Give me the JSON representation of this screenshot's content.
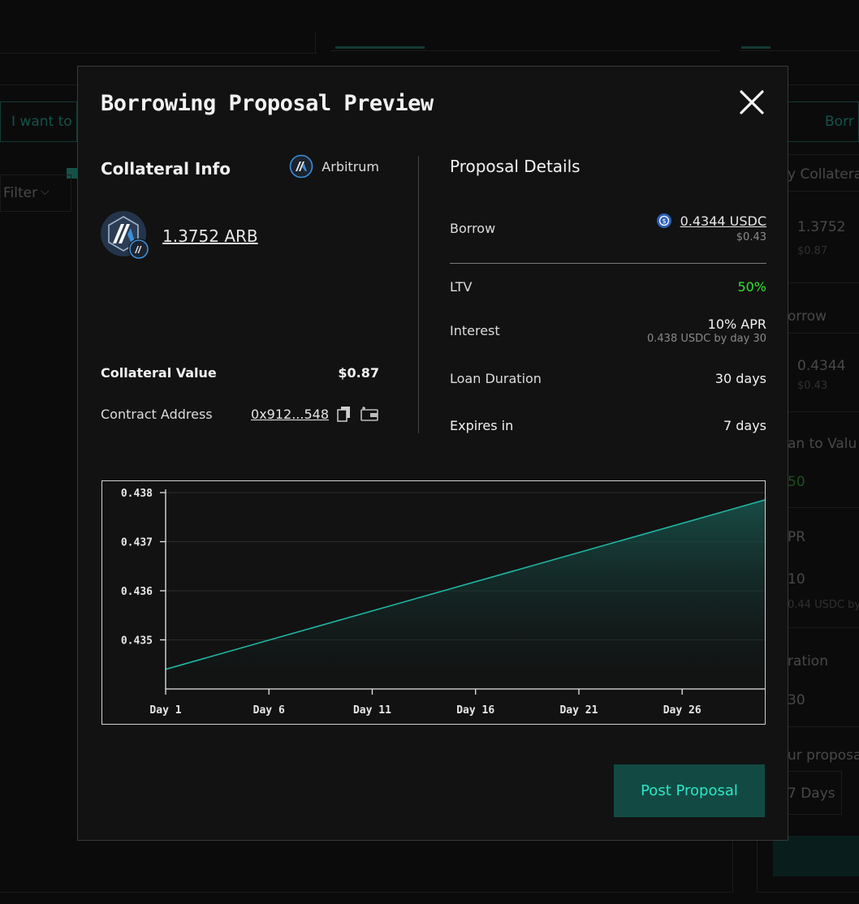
{
  "background": {
    "i_want_to": "I want to",
    "borrow_tab": "Borr",
    "filter": "Filter",
    "collateral": "y Collatera",
    "collateral_value": "1.3752",
    "collateral_usd": "$0.87",
    "borrow": "orrow",
    "borrow_value": "0.4344",
    "borrow_usd": "$0.43",
    "ltv_label": "an to Valu",
    "ltv_value": "50",
    "apr_label": "PR",
    "apr_value": "10",
    "apr_sub": "0.44 USDC by",
    "duration_label": "ration",
    "duration_value": "30",
    "proposal_label": "ur proposa",
    "proposal_days": "7 Days"
  },
  "modal": {
    "title": "Borrowing Proposal Preview",
    "close_icon": "close-icon",
    "collateral": {
      "title": "Collateral Info",
      "chain": "Arbitrum",
      "token_amount": "1.3752 ARB",
      "value_label": "Collateral Value",
      "value": "$0.87",
      "address_label": "Contract Address",
      "address": "0x912...548"
    },
    "details": {
      "title": "Proposal Details",
      "borrow_label": "Borrow",
      "borrow_amount": "0.4344 USDC",
      "borrow_usd": "$0.43",
      "ltv_label": "LTV",
      "ltv_value": "50%",
      "interest_label": "Interest",
      "interest_value": "10% APR",
      "interest_sub": "0.438 USDC by day 30",
      "duration_label": "Loan Duration",
      "duration_value": "30 days",
      "expires_label": "Expires in",
      "expires_value": "7 days"
    },
    "post_button": "Post Proposal",
    "colors": {
      "accent": "#2ee5c7",
      "button_bg": "#124a43",
      "ltv_green": "#31e22e",
      "line": "#1fb5a3"
    }
  },
  "chart_data": {
    "type": "area",
    "x": [
      1,
      30
    ],
    "x_ticks": [
      "Day 1",
      "Day 6",
      "Day 11",
      "Day 16",
      "Day 21",
      "Day 26"
    ],
    "x_tick_days": [
      1,
      6,
      11,
      16,
      21,
      26
    ],
    "y_ticks": [
      "0.435",
      "0.436",
      "0.437",
      "0.438"
    ],
    "y_tick_values": [
      0.435,
      0.436,
      0.437,
      0.438
    ],
    "series": [
      {
        "values": [
          0.4344,
          0.43785
        ]
      }
    ],
    "xlim": [
      1,
      30
    ],
    "ylim": [
      0.434,
      0.438
    ],
    "grid": true
  }
}
